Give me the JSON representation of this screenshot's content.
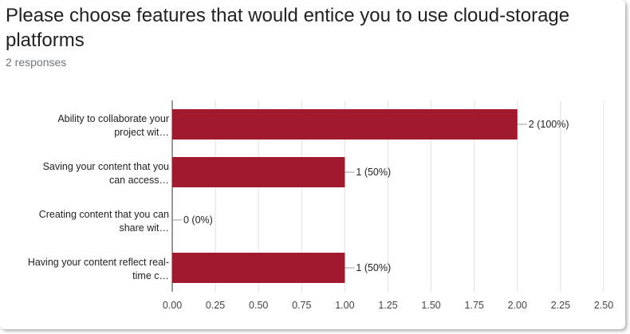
{
  "question": {
    "title": "Please choose features that would entice you to use cloud-storage platforms",
    "response_count": "2 responses"
  },
  "colors": {
    "bar": "#a0192c",
    "grid": "#e0e0e0",
    "connector": "#999999"
  },
  "chart_data": {
    "type": "bar",
    "orientation": "horizontal",
    "categories": [
      [
        "Ability to collaborate your",
        "project wit…"
      ],
      [
        "Saving your content that you",
        "can access…"
      ],
      [
        "Creating content that you can",
        "share wit…"
      ],
      [
        "Having your content reflect real-",
        "time c…"
      ]
    ],
    "values": [
      2,
      1,
      0,
      1
    ],
    "data_labels": [
      "2 (100%)",
      "1 (50%)",
      "0 (0%)",
      "1 (50%)"
    ],
    "xlim": [
      0,
      2.5
    ],
    "xticks": [
      0,
      0.25,
      0.5,
      0.75,
      1,
      1.25,
      1.5,
      1.75,
      2,
      2.25,
      2.5
    ],
    "xtick_labels": [
      "0.00",
      "0.25",
      "0.50",
      "0.75",
      "1.00",
      "1.25",
      "1.50",
      "1.75",
      "2.00",
      "2.25",
      "2.50"
    ],
    "grid": true,
    "legend": "none"
  }
}
